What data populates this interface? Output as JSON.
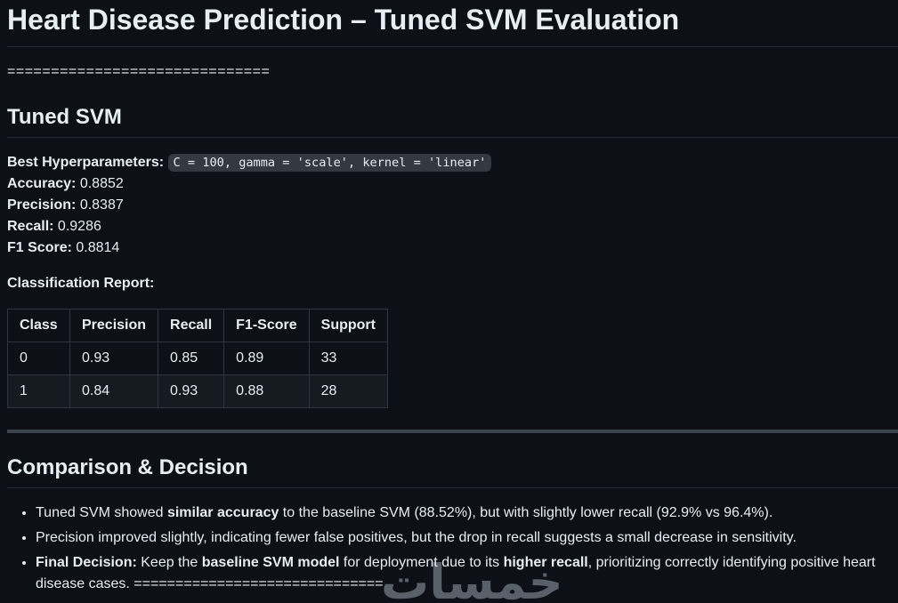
{
  "colors": {
    "background": "#0d1117",
    "text": "#e6edf3",
    "heading_border": "#262c36",
    "table_border": "#2f353d",
    "table_stripe_bg": "#161b22",
    "code_chip_bg": "#343941",
    "thick_rule": "#3d444d",
    "watermark": "#9aa2ac"
  },
  "header": {
    "title": "Heart Disease Prediction – Tuned SVM Evaluation",
    "separator": "=============================="
  },
  "tuned_svm": {
    "heading": "Tuned SVM",
    "hyperparameters_label": "Best Hyperparameters:",
    "hyperparameters_code": "C = 100, gamma = 'scale', kernel = 'linear'",
    "metrics": [
      {
        "label": "Accuracy:",
        "value": "0.8852"
      },
      {
        "label": "Precision:",
        "value": "0.8387"
      },
      {
        "label": "Recall:",
        "value": "0.9286"
      },
      {
        "label": "F1 Score:",
        "value": "0.8814"
      }
    ],
    "report_label": "Classification Report:",
    "table": {
      "headers": [
        "Class",
        "Precision",
        "Recall",
        "F1-Score",
        "Support"
      ],
      "rows": [
        [
          "0",
          "0.93",
          "0.85",
          "0.89",
          "33"
        ],
        [
          "1",
          "0.84",
          "0.93",
          "0.88",
          "28"
        ]
      ]
    }
  },
  "comparison": {
    "heading": "Comparison & Decision",
    "bullets": [
      {
        "segments": [
          {
            "text": "Tuned SVM showed ",
            "bold": false
          },
          {
            "text": "similar accuracy",
            "bold": true
          },
          {
            "text": " to the baseline SVM (88.52%), but with slightly lower recall (92.9% vs 96.4%).",
            "bold": false
          }
        ]
      },
      {
        "segments": [
          {
            "text": "Precision improved slightly, indicating fewer false positives, but the drop in recall suggests a small decrease in sensitivity.",
            "bold": false
          }
        ]
      },
      {
        "segments": [
          {
            "text": "Final Decision:",
            "bold": true
          },
          {
            "text": " Keep the ",
            "bold": false
          },
          {
            "text": "baseline SVM model",
            "bold": true
          },
          {
            "text": " for deployment due to its ",
            "bold": false
          },
          {
            "text": "higher recall",
            "bold": true
          },
          {
            "text": ", prioritizing correctly identifying positive heart disease cases. ==============================",
            "bold": false
          }
        ]
      }
    ]
  },
  "watermark": {
    "text": "خمسات"
  }
}
